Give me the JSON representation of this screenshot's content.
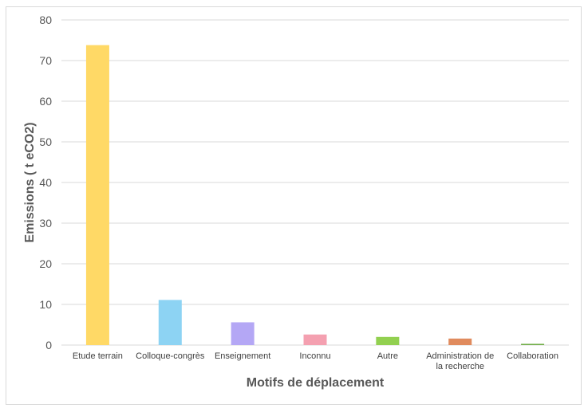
{
  "chart_data": {
    "type": "bar",
    "title": "",
    "xlabel": "Motifs de déplacement",
    "ylabel": "Emissions ( t eCO2)",
    "ylim": [
      0,
      80
    ],
    "yticks": [
      0,
      10,
      20,
      30,
      40,
      50,
      60,
      70,
      80
    ],
    "grid": true,
    "legend": "none",
    "categories": [
      [
        "Etude terrain"
      ],
      [
        "Colloque-congrès"
      ],
      [
        "Enseignement"
      ],
      [
        "Inconnu"
      ],
      [
        "Autre"
      ],
      [
        "Administration de",
        "la recherche"
      ],
      [
        "Collaboration"
      ]
    ],
    "values": [
      73.8,
      11.1,
      5.6,
      2.6,
      2.0,
      1.6,
      0.3
    ],
    "colors": [
      "#ffd966",
      "#8dd3f3",
      "#b4a7f5",
      "#f4a0b0",
      "#92d050",
      "#e08b5e",
      "#70ad47"
    ],
    "gridline_color": "#d9d9d9"
  }
}
